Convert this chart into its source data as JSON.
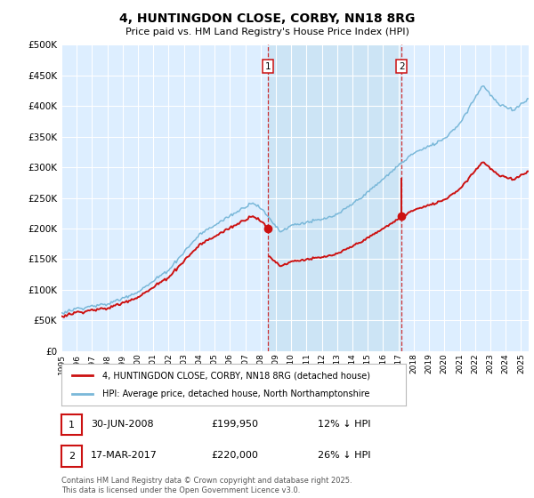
{
  "title": "4, HUNTINGDON CLOSE, CORBY, NN18 8RG",
  "subtitle": "Price paid vs. HM Land Registry's House Price Index (HPI)",
  "ylim": [
    0,
    500000
  ],
  "yticks": [
    0,
    50000,
    100000,
    150000,
    200000,
    250000,
    300000,
    350000,
    400000,
    450000,
    500000
  ],
  "background_color": "#ffffff",
  "plot_bg_color": "#ddeeff",
  "highlight_color": "#cce4f5",
  "grid_color": "#ffffff",
  "hpi_color": "#7ab8d9",
  "price_color": "#cc1111",
  "marker1_x": 2008.5,
  "marker1_y": 199950,
  "marker2_x": 2017.21,
  "marker2_y": 220000,
  "legend_line1": "4, HUNTINGDON CLOSE, CORBY, NN18 8RG (detached house)",
  "legend_line2": "HPI: Average price, detached house, North Northamptonshire",
  "marker1_date": "30-JUN-2008",
  "marker1_price": "£199,950",
  "marker1_hpi": "12% ↓ HPI",
  "marker2_date": "17-MAR-2017",
  "marker2_price": "£220,000",
  "marker2_hpi": "26% ↓ HPI",
  "footer": "Contains HM Land Registry data © Crown copyright and database right 2025.\nThis data is licensed under the Open Government Licence v3.0.",
  "xmin": 1995,
  "xmax": 2025.5
}
